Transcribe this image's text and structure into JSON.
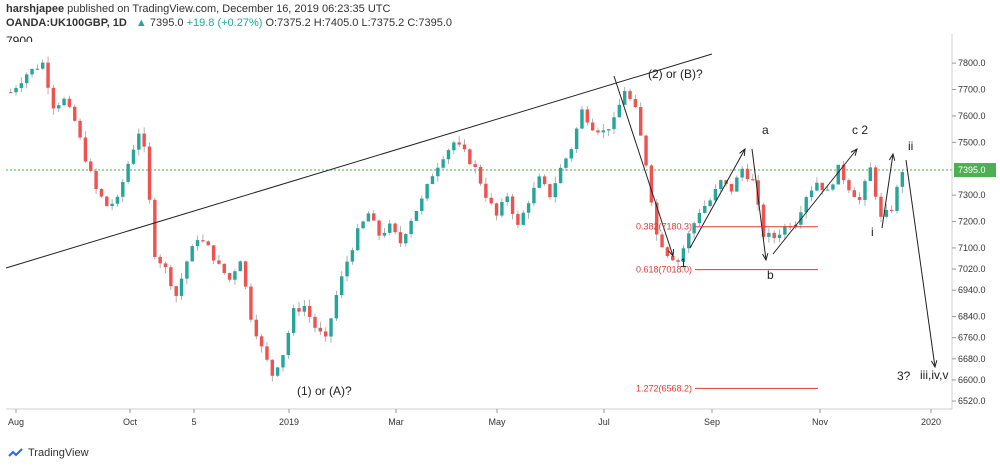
{
  "header": {
    "publisher": "harshjapee",
    "published_text": "published on TradingView.com, December 16, 2019 06:23:35 UTC",
    "symbol": "OANDA:UK100GBP, 1D",
    "last": "7395.0",
    "change": "+19.8 (+0.27%)",
    "ohlc": "O:7375.2 H:7405.0 L:7375.2 C:7395.0"
  },
  "corner_label": "7900",
  "footer": {
    "brand": "TradingView"
  },
  "chart_data": {
    "type": "candlestick",
    "title": "",
    "x_axis": {
      "tick_labels": [
        "Aug",
        "Oct",
        "5",
        "2019",
        "Mar",
        "May",
        "Jul",
        "Sep",
        "Nov",
        "2020"
      ]
    },
    "y_axis": {
      "min": 6490,
      "max": 7880,
      "tick_labels": [
        "7800.0",
        "7700.0",
        "7600.0",
        "7500.0",
        "7300.0",
        "7200.0",
        "7100.0",
        "7020.0",
        "6940.0",
        "6840.0",
        "6760.0",
        "6680.0",
        "6600.0",
        "6520.0"
      ],
      "current_price_label": "7395.0"
    },
    "close_path": [
      [
        0,
        7690
      ],
      [
        3,
        7760
      ],
      [
        6,
        7800
      ],
      [
        8,
        7640
      ],
      [
        10,
        7660
      ],
      [
        12,
        7580
      ],
      [
        14,
        7440
      ],
      [
        16,
        7320
      ],
      [
        18,
        7260
      ],
      [
        20,
        7280
      ],
      [
        22,
        7420
      ],
      [
        24,
        7540
      ],
      [
        25,
        7470
      ],
      [
        27,
        7080
      ],
      [
        29,
        7020
      ],
      [
        31,
        6920
      ],
      [
        33,
        7050
      ],
      [
        35,
        7140
      ],
      [
        37,
        7100
      ],
      [
        39,
        7030
      ],
      [
        41,
        6980
      ],
      [
        43,
        7060
      ],
      [
        45,
        6840
      ],
      [
        47,
        6720
      ],
      [
        49,
        6620
      ],
      [
        51,
        6700
      ],
      [
        53,
        6860
      ],
      [
        55,
        6880
      ],
      [
        57,
        6800
      ],
      [
        59,
        6750
      ],
      [
        61,
        6920
      ],
      [
        63,
        7050
      ],
      [
        65,
        7160
      ],
      [
        67,
        7230
      ],
      [
        69,
        7150
      ],
      [
        71,
        7180
      ],
      [
        73,
        7120
      ],
      [
        75,
        7210
      ],
      [
        77,
        7280
      ],
      [
        79,
        7380
      ],
      [
        81,
        7450
      ],
      [
        83,
        7500
      ],
      [
        85,
        7460
      ],
      [
        87,
        7400
      ],
      [
        89,
        7300
      ],
      [
        91,
        7220
      ],
      [
        93,
        7300
      ],
      [
        95,
        7180
      ],
      [
        97,
        7280
      ],
      [
        99,
        7360
      ],
      [
        101,
        7300
      ],
      [
        103,
        7400
      ],
      [
        105,
        7480
      ],
      [
        107,
        7620
      ],
      [
        109,
        7560
      ],
      [
        111,
        7540
      ],
      [
        113,
        7580
      ],
      [
        115,
        7700
      ],
      [
        117,
        7620
      ],
      [
        119,
        7420
      ],
      [
        121,
        7150
      ],
      [
        123,
        7080
      ],
      [
        125,
        7050
      ],
      [
        127,
        7150
      ],
      [
        129,
        7240
      ],
      [
        131,
        7280
      ],
      [
        133,
        7350
      ],
      [
        135,
        7320
      ],
      [
        137,
        7400
      ],
      [
        139,
        7350
      ],
      [
        141,
        7150
      ],
      [
        143,
        7140
      ],
      [
        145,
        7180
      ],
      [
        147,
        7200
      ],
      [
        149,
        7300
      ],
      [
        151,
        7350
      ],
      [
        153,
        7310
      ],
      [
        155,
        7400
      ],
      [
        157,
        7330
      ],
      [
        159,
        7280
      ],
      [
        161,
        7400
      ],
      [
        163,
        7210
      ],
      [
        165,
        7250
      ],
      [
        167,
        7395
      ]
    ],
    "annotations": [
      {
        "text": "(2) or (B)?"
      },
      {
        "text": "(1) or (A)?"
      },
      {
        "text": "a"
      },
      {
        "text": "b"
      },
      {
        "text": "c 2"
      },
      {
        "text": "1"
      },
      {
        "text": "i"
      },
      {
        "text": "ii"
      },
      {
        "text": "3?"
      },
      {
        "text": "iii,iv,v"
      }
    ],
    "fib_levels": [
      {
        "label": "0.382(7180.3)",
        "value": 7180.3
      },
      {
        "label": "0.618(7018.0)",
        "value": 7018.0
      },
      {
        "label": "1.272(6568.2)",
        "value": 6568.2
      }
    ],
    "colors": {
      "up": "#26a69a",
      "down": "#ef5350",
      "line": "#222222",
      "fib": "#e53935",
      "current": "#4caf50"
    }
  }
}
